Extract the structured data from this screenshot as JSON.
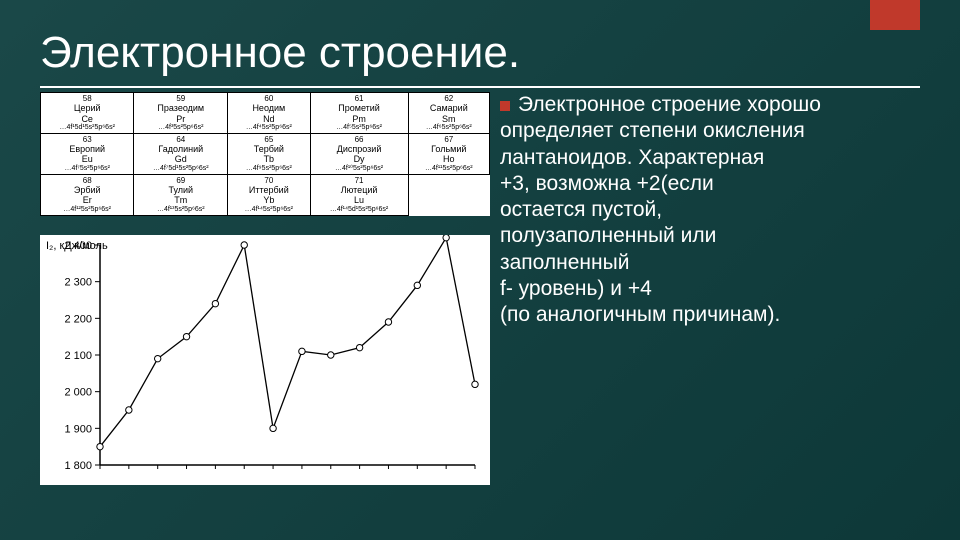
{
  "title": "Электронное строение.",
  "accent_color": "#c0392b",
  "background_gradient": [
    "#1a4848",
    "#0d3838"
  ],
  "table": {
    "rows": [
      [
        {
          "num": "58",
          "name": "Церий",
          "sym": "Ce",
          "conf": "…4f¹5d¹5s²5p⁶6s²"
        },
        {
          "num": "59",
          "name": "Празеодим",
          "sym": "Pr",
          "conf": "…4f³5s²5p⁶6s²"
        },
        {
          "num": "60",
          "name": "Неодим",
          "sym": "Nd",
          "conf": "…4f⁴5s²5p⁶6s²"
        },
        {
          "num": "61",
          "name": "Прометий",
          "sym": "Pm",
          "conf": "…4f⁵5s²5p⁶6s²"
        },
        {
          "num": "62",
          "name": "Самарий",
          "sym": "Sm",
          "conf": "…4f⁶5s²5p⁶6s²"
        }
      ],
      [
        {
          "num": "63",
          "name": "Европий",
          "sym": "Eu",
          "conf": "…4f⁷5s²5p⁶6s²"
        },
        {
          "num": "64",
          "name": "Гадолиний",
          "sym": "Gd",
          "conf": "…4f⁷5d¹5s²5p⁶6s²"
        },
        {
          "num": "65",
          "name": "Тербий",
          "sym": "Tb",
          "conf": "…4f⁹5s²5p⁶6s²"
        },
        {
          "num": "66",
          "name": "Диспрозий",
          "sym": "Dy",
          "conf": "…4f¹⁰5s²5p⁶6s²"
        },
        {
          "num": "67",
          "name": "Гольмий",
          "sym": "Ho",
          "conf": "…4f¹¹5s²5p⁶6s²"
        }
      ],
      [
        {
          "num": "68",
          "name": "Эрбий",
          "sym": "Er",
          "conf": "…4f¹²5s²5p⁶6s²"
        },
        {
          "num": "69",
          "name": "Тулий",
          "sym": "Tm",
          "conf": "…4f¹³5s²5p⁶6s²"
        },
        {
          "num": "70",
          "name": "Иттербий",
          "sym": "Yb",
          "conf": "…4f¹⁴5s²5p⁶6s²"
        },
        {
          "num": "71",
          "name": "Лютеций",
          "sym": "Lu",
          "conf": "…4f¹⁴5d¹5s²5p⁶6s²"
        },
        null
      ]
    ]
  },
  "chart": {
    "type": "line",
    "ylabel": "I₂, кДж/моль",
    "ylim": [
      1800,
      2400
    ],
    "ytick_step": 100,
    "yticks": [
      1800,
      1900,
      2000,
      2100,
      2200,
      2300,
      2400
    ],
    "x_count": 14,
    "values": [
      1850,
      1950,
      2090,
      2150,
      2240,
      2400,
      1900,
      2110,
      2100,
      2120,
      2190,
      2290,
      2420,
      2020
    ],
    "line_color": "#000000",
    "line_width": 1.3,
    "marker_color": "#ffffff",
    "marker_stroke": "#000000",
    "marker_radius": 3.2,
    "background_color": "#ffffff",
    "axis_color": "#000000",
    "tick_font_size": 11
  },
  "body": {
    "lines": [
      "Электронное строение хорошо",
      "определяет степени окисления",
      "лантаноидов. Характерная",
      "+3, возможна +2(если",
      "остается пустой,",
      "полузаполненный или",
      "заполненный",
      "f- уровень) и +4",
      "(по аналогичным причинам)."
    ]
  }
}
